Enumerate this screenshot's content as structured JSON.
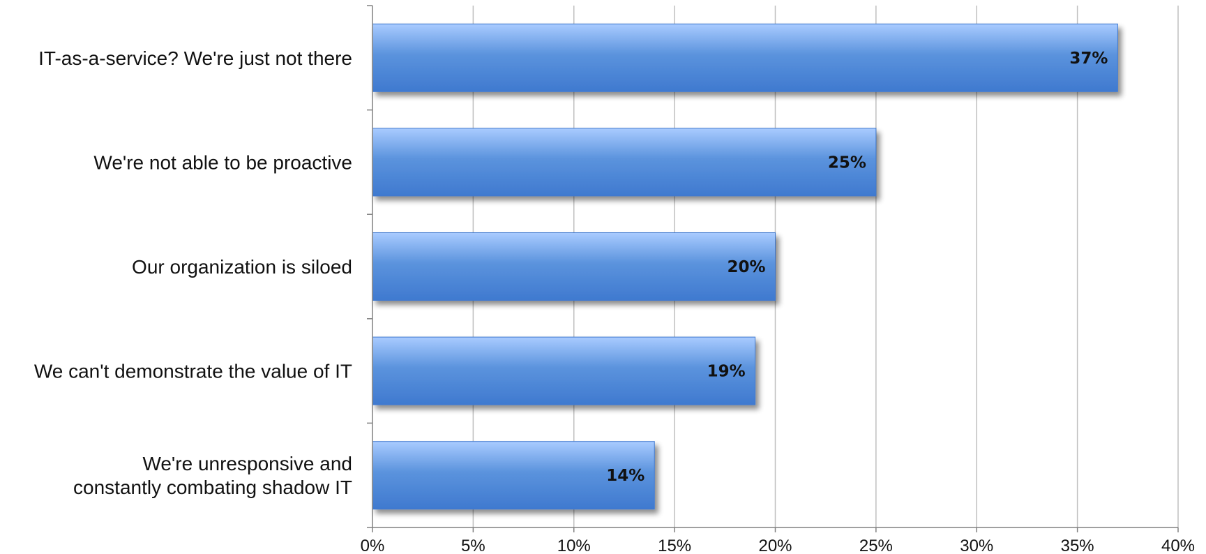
{
  "chart_data": {
    "type": "bar",
    "orientation": "horizontal",
    "categories": [
      [
        "IT-as-a-service? We're just not there"
      ],
      [
        "We're not able to be proactive"
      ],
      [
        "Our organization is siloed"
      ],
      [
        "We can't demonstrate the value of IT"
      ],
      [
        "We're unresponsive and",
        "constantly combating shadow IT"
      ]
    ],
    "values": [
      37,
      25,
      20,
      19,
      14
    ],
    "data_labels": [
      "37%",
      "25%",
      "20%",
      "19%",
      "14%"
    ],
    "xlim": [
      0,
      40
    ],
    "x_ticks": [
      0,
      5,
      10,
      15,
      20,
      25,
      30,
      35,
      40
    ],
    "x_tick_labels": [
      "0%",
      "5%",
      "10%",
      "15%",
      "20%",
      "25%",
      "30%",
      "35%",
      "40%"
    ],
    "grid": "vertical",
    "legend": "none",
    "bar_color": "#5b93dd",
    "bar_color_light": "#a9cbff",
    "bar_color_dark": "#3f79cf",
    "grid_color": "#bfbfbf",
    "axis_color": "#808080"
  }
}
